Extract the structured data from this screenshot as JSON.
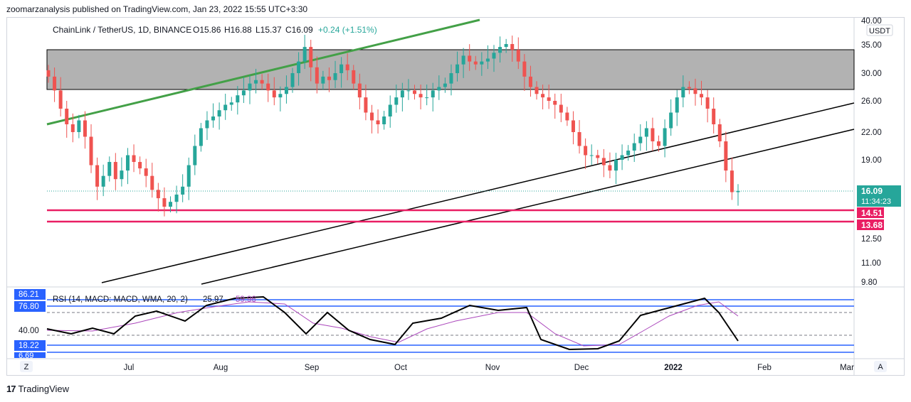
{
  "caption": "zoomarzanalysis published on TradingView.com, Jan 23, 2022 15:55 UTC+3:30",
  "footer": {
    "brand": "TradingView",
    "logo_icon": "tradingview-logo-icon"
  },
  "header": {
    "symbol": "ChainLink / TetherUS, 1D, BINANCE",
    "open": "O15.86",
    "high": "H16.88",
    "low": "L15.37",
    "close": "C16.09",
    "change": "+0.24 (+1.51%)"
  },
  "currency_button": "USDT",
  "corner_buttons": {
    "left": "Z",
    "right": "A"
  },
  "price_axis": {
    "ticks": [
      "40.00",
      "35.00",
      "30.00",
      "26.00",
      "22.00",
      "19.00",
      "12.50",
      "11.00",
      "9.80"
    ],
    "last_price": "16.09",
    "countdown": "11:34:23",
    "levels": [
      "14.51",
      "13.68"
    ]
  },
  "time_axis": [
    "Jul",
    "Aug",
    "Sep",
    "Oct",
    "Nov",
    "Dec",
    "2022",
    "Feb",
    "Mar"
  ],
  "rsi_panel": {
    "title": "RSI (14, MACD: MACD, WMA, 20, 2)",
    "value1": "25.97",
    "value2": "59.96",
    "levels": [
      "86.21",
      "76.80",
      "40.00",
      "18.22",
      "6.69"
    ]
  },
  "colors": {
    "bull": "#26a69a",
    "bear": "#ef5350",
    "level_line": "#e91e63",
    "zone_fill": "#b2b2b2",
    "trend_green": "#43a047",
    "rsi_line": "#000000",
    "rsi_signal": "#ab47bc",
    "rsi_band": "#2962ff"
  },
  "chart_data": {
    "type": "candlestick",
    "price_series_close": [
      29.5,
      27.5,
      25.0,
      23.0,
      22.0,
      23.5,
      21.5,
      18.5,
      16.5,
      17.5,
      18.8,
      17.2,
      18.0,
      19.5,
      18.8,
      18.2,
      17.5,
      16.2,
      15.5,
      14.8,
      15.2,
      15.8,
      16.5,
      18.5,
      20.5,
      22.5,
      23.5,
      24.0,
      24.8,
      25.5,
      25.8,
      26.8,
      27.5,
      28.5,
      29.0,
      28.5,
      27.5,
      26.5,
      27.0,
      28.0,
      30.0,
      32.0,
      34.5,
      31.0,
      28.5,
      29.5,
      29.0,
      30.0,
      31.5,
      30.5,
      28.5,
      26.5,
      24.5,
      23.5,
      23.0,
      24.0,
      25.5,
      26.5,
      27.5,
      27.5,
      27.0,
      26.5,
      26.5,
      27.5,
      28.0,
      28.5,
      30.0,
      31.5,
      33.0,
      32.0,
      31.5,
      32.0,
      32.5,
      33.5,
      34.5,
      35.0,
      34.0,
      32.0,
      29.5,
      28.0,
      27.0,
      26.5,
      26.0,
      25.5,
      24.5,
      23.5,
      22.0,
      20.5,
      19.5,
      19.5,
      19.2,
      18.5,
      18.0,
      19.0,
      19.5,
      20.0,
      20.8,
      21.5,
      22.5,
      21.0,
      20.5,
      22.5,
      24.5,
      26.5,
      28.0,
      27.8,
      27.0,
      26.5,
      25.0,
      23.0,
      21.0,
      18.0,
      16.0,
      16.09
    ],
    "price_levels": {
      "support_1": 14.51,
      "support_2": 13.68,
      "last": 16.09
    },
    "resistance_zone": [
      27.5,
      34.0
    ],
    "rsi_levels": [
      86.21,
      76.8,
      40.0,
      18.22,
      6.69
    ],
    "rsi_last": 25.97,
    "rsi_signal_last": 59.96,
    "x_labels": [
      "Jul",
      "Aug",
      "Sep",
      "Oct",
      "Nov",
      "Dec",
      "2022",
      "Feb",
      "Mar"
    ]
  }
}
